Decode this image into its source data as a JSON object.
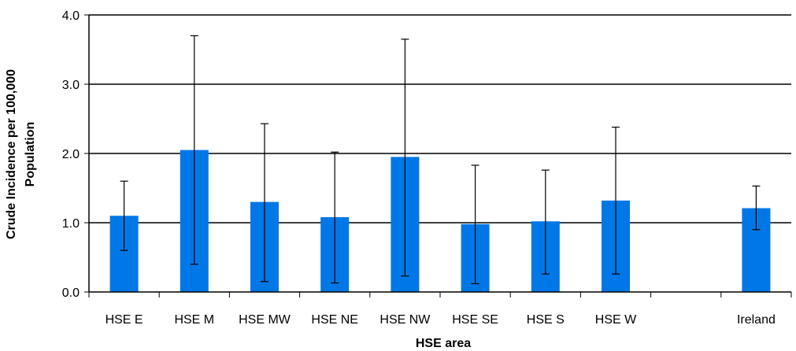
{
  "chart_data": {
    "type": "bar",
    "xlabel": "HSE area",
    "ylabel_lines": [
      "Crude Incidence per 100,000",
      "Population"
    ],
    "ylim": [
      0,
      4
    ],
    "yticks": [
      "0.0",
      "1.0",
      "2.0",
      "3.0",
      "4.0"
    ],
    "ytick_values": [
      0,
      1,
      2,
      3,
      4
    ],
    "grid": true,
    "bar_color": "#0077e6",
    "categories": [
      "HSE E",
      "HSE M",
      "HSE MW",
      "HSE NE",
      "HSE NW",
      "HSE SE",
      "HSE S",
      "HSE W",
      "",
      "Ireland"
    ],
    "values": [
      1.1,
      2.05,
      1.3,
      1.08,
      1.95,
      0.98,
      1.02,
      1.32,
      null,
      1.21
    ],
    "error_low": [
      0.6,
      0.4,
      0.15,
      0.13,
      0.23,
      0.12,
      0.26,
      0.26,
      null,
      0.9
    ],
    "error_high": [
      1.6,
      3.7,
      2.43,
      2.02,
      3.65,
      1.83,
      1.76,
      2.38,
      null,
      1.53
    ]
  }
}
